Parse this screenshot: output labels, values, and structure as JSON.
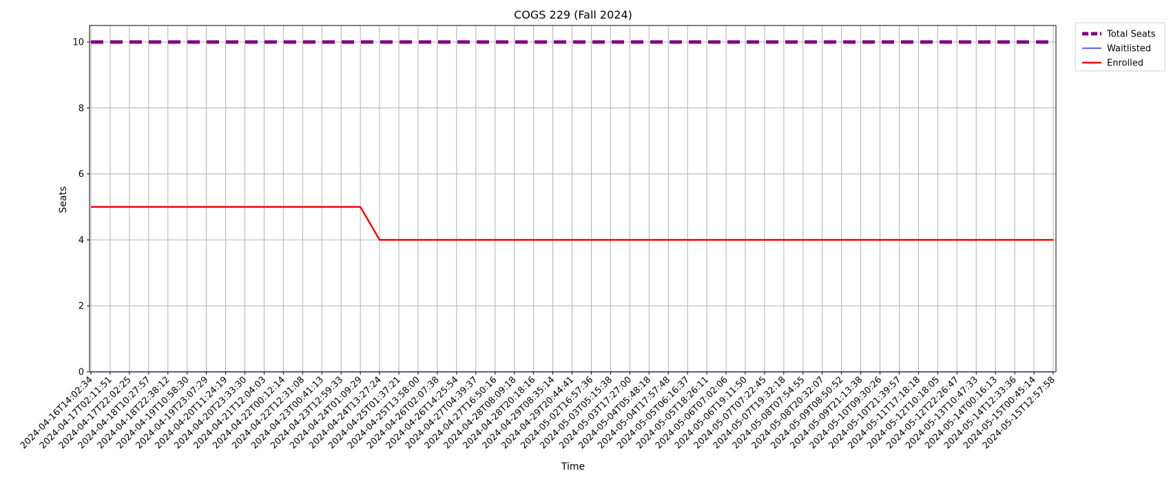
{
  "chart_data": {
    "type": "line",
    "title": "COGS 229 (Fall 2024)",
    "xlabel": "Time",
    "ylabel": "Seats",
    "ylim": [
      0,
      10.5
    ],
    "yticks": [
      0,
      2,
      4,
      6,
      8,
      10
    ],
    "grid": true,
    "legend_position": "outside-top-right",
    "x": [
      "2024-04-16T14:02:34",
      "2024-04-17T02:11:51",
      "2024-04-17T22:02:25",
      "2024-04-18T10:27:57",
      "2024-04-18T22:38:12",
      "2024-04-19T10:58:30",
      "2024-04-19T23:07:29",
      "2024-04-20T11:24:19",
      "2024-04-20T23:33:30",
      "2024-04-21T12:04:03",
      "2024-04-22T00:12:14",
      "2024-04-22T12:31:08",
      "2024-04-23T00:41:13",
      "2024-04-23T12:59:33",
      "2024-04-24T01:09:29",
      "2024-04-24T13:27:24",
      "2024-04-25T01:37:21",
      "2024-04-25T13:58:00",
      "2024-04-26T02:07:38",
      "2024-04-26T14:25:54",
      "2024-04-27T04:39:37",
      "2024-04-27T16:50:16",
      "2024-04-28T08:09:18",
      "2024-04-28T20:18:16",
      "2024-04-29T08:35:14",
      "2024-04-29T20:44:41",
      "2024-05-02T16:57:36",
      "2024-05-03T05:15:38",
      "2024-05-03T17:27:00",
      "2024-05-04T05:48:18",
      "2024-05-04T17:57:48",
      "2024-05-05T06:16:37",
      "2024-05-05T18:26:11",
      "2024-05-06T07:02:06",
      "2024-05-06T19:11:50",
      "2024-05-07T07:22:45",
      "2024-05-07T19:32:18",
      "2024-05-08T07:54:55",
      "2024-05-08T20:32:07",
      "2024-05-09T08:50:52",
      "2024-05-09T21:13:38",
      "2024-05-10T09:30:26",
      "2024-05-10T21:39:57",
      "2024-05-11T17:18:18",
      "2024-05-12T10:18:05",
      "2024-05-12T22:26:47",
      "2024-05-13T10:47:33",
      "2024-05-14T00:16:13",
      "2024-05-14T12:33:36",
      "2024-05-15T00:45:14",
      "2024-05-15T12:57:58"
    ],
    "series": [
      {
        "name": "Total Seats",
        "color": "#800080",
        "style": "dashed",
        "values": [
          10,
          10,
          10,
          10,
          10,
          10,
          10,
          10,
          10,
          10,
          10,
          10,
          10,
          10,
          10,
          10,
          10,
          10,
          10,
          10,
          10,
          10,
          10,
          10,
          10,
          10,
          10,
          10,
          10,
          10,
          10,
          10,
          10,
          10,
          10,
          10,
          10,
          10,
          10,
          10,
          10,
          10,
          10,
          10,
          10,
          10,
          10,
          10,
          10,
          10,
          10
        ]
      },
      {
        "name": "Waitlisted",
        "color": "#0000ff",
        "style": "solid-thin",
        "values": [
          0,
          0,
          0,
          0,
          0,
          0,
          0,
          0,
          0,
          0,
          0,
          0,
          0,
          0,
          0,
          0,
          0,
          0,
          0,
          0,
          0,
          0,
          0,
          0,
          0,
          0,
          0,
          0,
          0,
          0,
          0,
          0,
          0,
          0,
          0,
          0,
          0,
          0,
          0,
          0,
          0,
          0,
          0,
          0,
          0,
          0,
          0,
          0,
          0,
          0,
          0
        ]
      },
      {
        "name": "Enrolled",
        "color": "#ff0000",
        "style": "solid",
        "values": [
          5,
          5,
          5,
          5,
          5,
          5,
          5,
          5,
          5,
          5,
          5,
          5,
          5,
          5,
          5,
          4,
          4,
          4,
          4,
          4,
          4,
          4,
          4,
          4,
          4,
          4,
          4,
          4,
          4,
          4,
          4,
          4,
          4,
          4,
          4,
          4,
          4,
          4,
          4,
          4,
          4,
          4,
          4,
          4,
          4,
          4,
          4,
          4,
          4,
          4,
          4
        ]
      }
    ]
  }
}
